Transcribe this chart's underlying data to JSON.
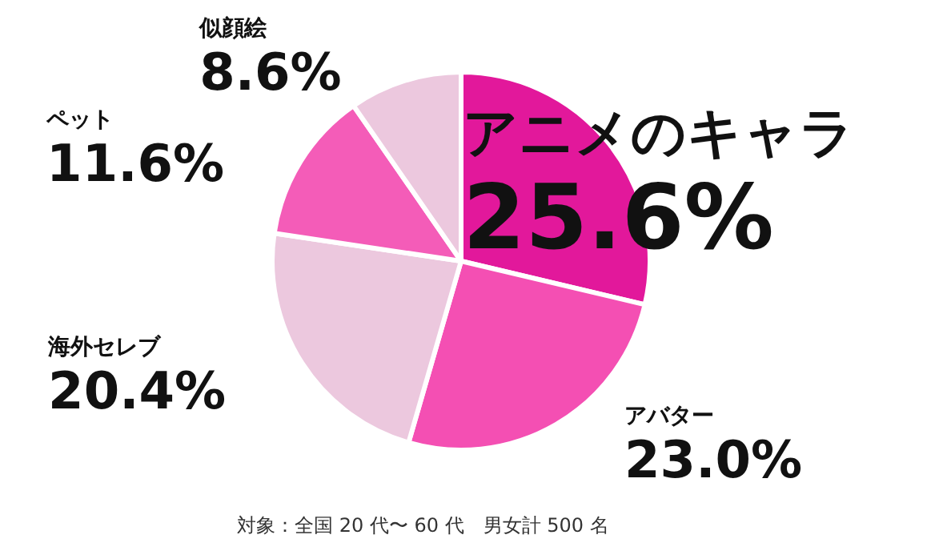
{
  "chart_data": {
    "type": "pie",
    "categories": [
      "アニメのキャラ",
      "アバター",
      "海外セレブ",
      "ペット",
      "似顔絵"
    ],
    "values": [
      25.6,
      23.0,
      20.4,
      11.6,
      8.6
    ],
    "value_labels": [
      "25.6%",
      "23.0%",
      "20.4%",
      "11.6%",
      "8.6%"
    ],
    "colors": [
      "#e2189b",
      "#f44fb3",
      "#ecc8de",
      "#f45cb8",
      "#ecc8de"
    ],
    "annotations": [
      "対象：全国 20 代〜 60 代　男女計 500 名"
    ],
    "legend": false
  }
}
